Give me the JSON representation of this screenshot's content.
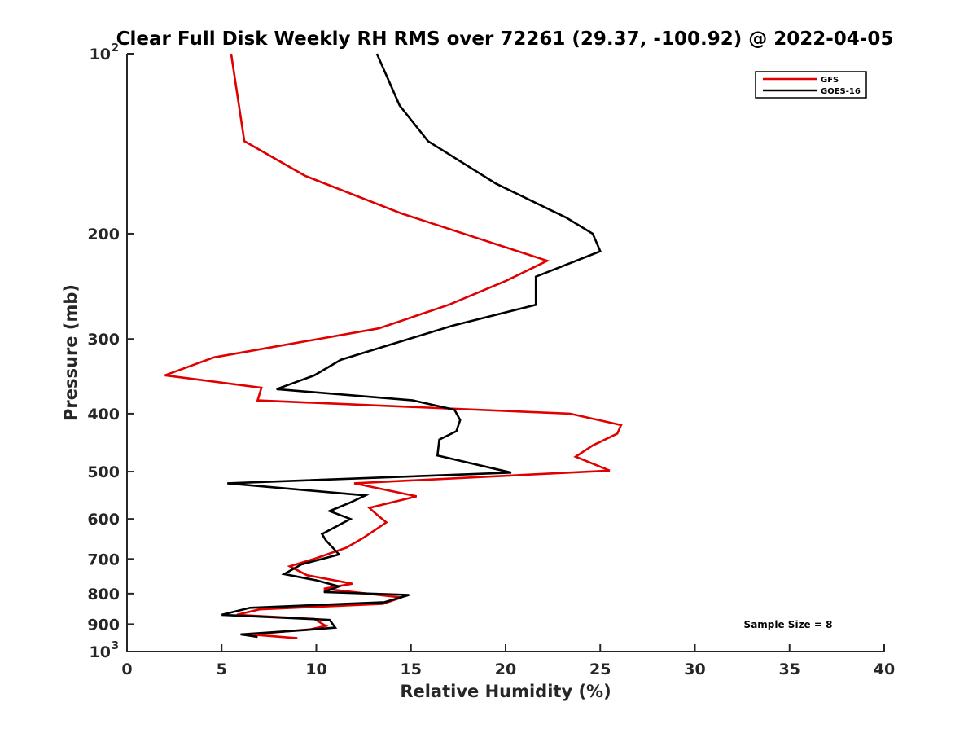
{
  "chart_data": {
    "type": "line",
    "title": "Clear Full Disk Weekly RH RMS over 72261 (29.37, -100.92) @ 2022-04-05",
    "xlabel": "Relative Humidity (%)",
    "ylabel": "Pressure (mb)",
    "xlim": [
      0,
      40
    ],
    "ylim": [
      100,
      1000
    ],
    "yscale": "log",
    "y_reversed": true,
    "grid": false,
    "legend_position": "top-right",
    "x_ticks": [
      "0",
      "5",
      "10",
      "15",
      "20",
      "25",
      "30",
      "35",
      "40"
    ],
    "y_ticks": [
      {
        "value": 100,
        "base": "10",
        "exp": "2"
      },
      {
        "value": 200,
        "label": "200"
      },
      {
        "value": 300,
        "label": "300"
      },
      {
        "value": 400,
        "label": "400"
      },
      {
        "value": 500,
        "label": "500"
      },
      {
        "value": 600,
        "label": "600"
      },
      {
        "value": 700,
        "label": "700"
      },
      {
        "value": 800,
        "label": "800"
      },
      {
        "value": 900,
        "label": "900"
      },
      {
        "value": 1000,
        "base": "10",
        "exp": "3"
      }
    ],
    "annotation": "Sample Size = 8",
    "series": [
      {
        "name": "GFS",
        "color": "#e00000",
        "points": [
          [
            5.5,
            100
          ],
          [
            6.2,
            140
          ],
          [
            9.4,
            160
          ],
          [
            14.5,
            185
          ],
          [
            22.2,
            222
          ],
          [
            20.0,
            240
          ],
          [
            17.0,
            263
          ],
          [
            13.3,
            288
          ],
          [
            4.6,
            322
          ],
          [
            2.0,
            345
          ],
          [
            7.1,
            362
          ],
          [
            6.9,
            380
          ],
          [
            23.4,
            400
          ],
          [
            26.1,
            418
          ],
          [
            25.9,
            432
          ],
          [
            24.6,
            452
          ],
          [
            23.7,
            472
          ],
          [
            25.5,
            498
          ],
          [
            12.0,
            523
          ],
          [
            15.3,
            550
          ],
          [
            12.8,
            575
          ],
          [
            13.2,
            590
          ],
          [
            13.7,
            608
          ],
          [
            12.5,
            645
          ],
          [
            11.6,
            670
          ],
          [
            10.0,
            698
          ],
          [
            8.6,
            720
          ],
          [
            9.5,
            745
          ],
          [
            11.9,
            770
          ],
          [
            10.4,
            785
          ],
          [
            13.0,
            802
          ],
          [
            14.5,
            812
          ],
          [
            13.5,
            832
          ],
          [
            7.0,
            850
          ],
          [
            5.8,
            868
          ],
          [
            9.9,
            882
          ],
          [
            10.5,
            906
          ],
          [
            9.7,
            918
          ],
          [
            6.5,
            936
          ],
          [
            9.0,
            950
          ]
        ]
      },
      {
        "name": "GOES-16",
        "color": "#000000",
        "points": [
          [
            13.2,
            100
          ],
          [
            14.4,
            122
          ],
          [
            15.9,
            140
          ],
          [
            19.5,
            165
          ],
          [
            23.2,
            188
          ],
          [
            24.6,
            200
          ],
          [
            25.0,
            214
          ],
          [
            21.6,
            236
          ],
          [
            21.6,
            263
          ],
          [
            17.2,
            285
          ],
          [
            14.0,
            306
          ],
          [
            11.3,
            325
          ],
          [
            9.9,
            345
          ],
          [
            7.9,
            364
          ],
          [
            15.1,
            380
          ],
          [
            17.3,
            394
          ],
          [
            17.6,
            410
          ],
          [
            17.4,
            428
          ],
          [
            16.5,
            442
          ],
          [
            16.4,
            470
          ],
          [
            20.3,
            502
          ],
          [
            5.3,
            523
          ],
          [
            12.6,
            548
          ],
          [
            11.8,
            563
          ],
          [
            10.7,
            582
          ],
          [
            11.8,
            600
          ],
          [
            10.3,
            636
          ],
          [
            10.5,
            651
          ],
          [
            11.2,
            688
          ],
          [
            9.2,
            715
          ],
          [
            8.3,
            742
          ],
          [
            10.0,
            760
          ],
          [
            11.2,
            778
          ],
          [
            10.4,
            795
          ],
          [
            14.9,
            804
          ],
          [
            13.6,
            827
          ],
          [
            6.5,
            845
          ],
          [
            5.0,
            868
          ],
          [
            10.7,
            885
          ],
          [
            11.0,
            912
          ],
          [
            9.5,
            920
          ],
          [
            6.0,
            936
          ],
          [
            6.9,
            945
          ]
        ]
      }
    ]
  }
}
